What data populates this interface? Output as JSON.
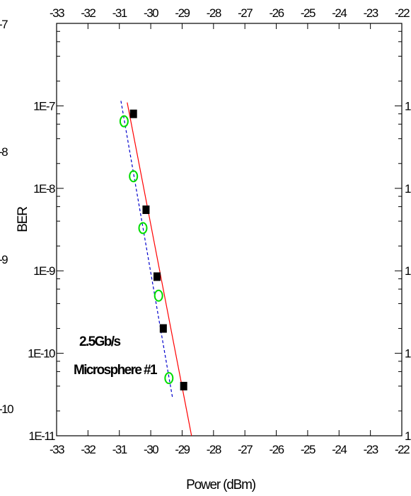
{
  "chart_data": {
    "type": "scatter",
    "title": "",
    "xlabel": "Power (dBm)",
    "ylabel": "BER",
    "x_scale": "linear",
    "y_scale": "log",
    "xlim": [
      -33,
      -22
    ],
    "ylim": [
      1e-11,
      1e-06
    ],
    "x_ticks": [
      "-33",
      "-32",
      "-31",
      "-30",
      "-29",
      "-28",
      "-27",
      "-26",
      "-25",
      "-24",
      "-23",
      "-22"
    ],
    "y_ticks": [
      {
        "value": 1e-07,
        "label": "1E-7"
      },
      {
        "value": 1e-08,
        "label": "1E-8"
      },
      {
        "value": 1e-09,
        "label": "1E-9"
      },
      {
        "value": 1e-10,
        "label": "1E-10"
      },
      {
        "value": 1e-11,
        "label": "1E-11"
      }
    ],
    "left_clipped_labels": [
      "-7",
      "-8",
      "-9",
      "-10"
    ],
    "right_clipped_label": "1",
    "annotations": [
      "2.5Gb/s",
      "Microsphere #1"
    ],
    "grid": false,
    "series": [
      {
        "marker": "filled-square",
        "color": "#000000",
        "points": [
          {
            "x": -30.55,
            "y": 8e-08
          },
          {
            "x": -30.15,
            "y": 5.5e-09
          },
          {
            "x": -29.8,
            "y": 8.5e-10
          },
          {
            "x": -29.6,
            "y": 2e-10
          },
          {
            "x": -28.95,
            "y": 4e-11
          }
        ]
      },
      {
        "marker": "open-circle",
        "color": "#00dd00",
        "points": [
          {
            "x": -30.85,
            "y": 6.5e-08
          },
          {
            "x": -30.55,
            "y": 1.4e-08
          },
          {
            "x": -30.25,
            "y": 3.3e-09
          },
          {
            "x": -29.75,
            "y": 5e-10
          },
          {
            "x": -29.42,
            "y": 5e-11
          }
        ]
      }
    ],
    "fit_lines": [
      {
        "style": "solid",
        "color": "#ff0000",
        "from": {
          "x": -30.75,
          "y": 1.1e-07
        },
        "to": {
          "x": -28.7,
          "y": 1e-11
        }
      },
      {
        "style": "dashed",
        "color": "#0000cc",
        "from": {
          "x": -30.95,
          "y": 1.15e-07
        },
        "to": {
          "x": -29.3,
          "y": 2.8e-11
        }
      }
    ]
  }
}
